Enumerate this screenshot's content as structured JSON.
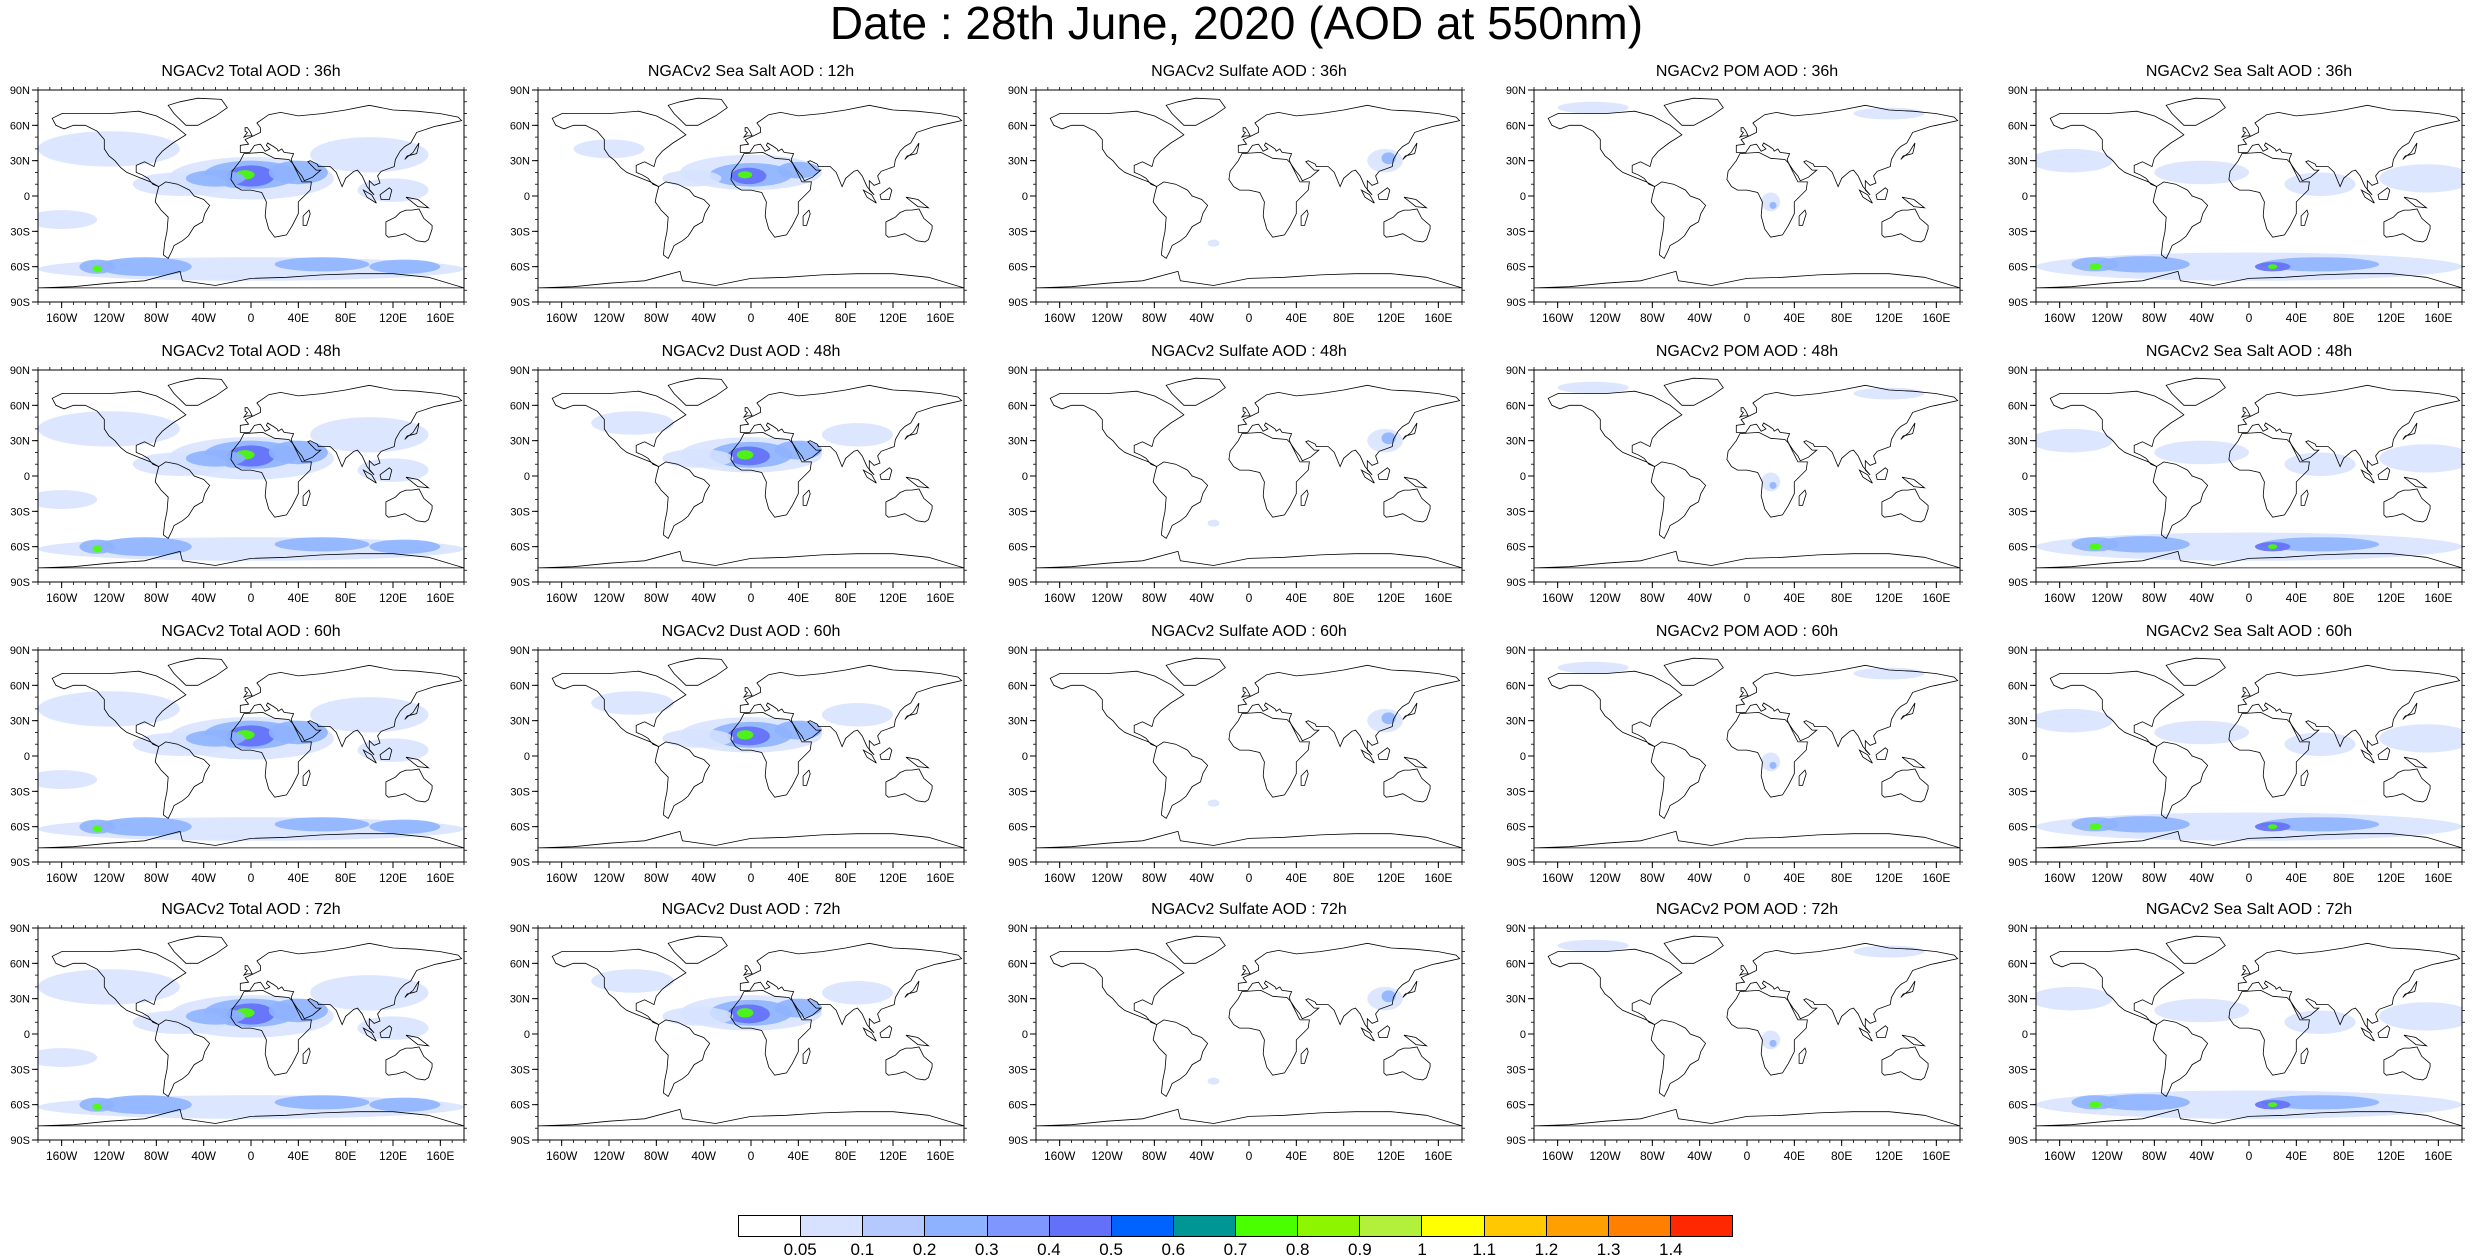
{
  "title": "Date : 28th June, 2020 (AOD at 550nm)",
  "panels": [
    [
      "NGACv2 Total AOD : 36h",
      "NGACv2 Sea Salt  AOD : 12h",
      "NGACv2 Sulfate AOD : 36h",
      "NGACv2 POM AOD : 36h",
      "NGACv2 Sea Salt AOD : 36h"
    ],
    [
      "NGACv2 Total AOD : 48h",
      "NGACv2 Dust AOD : 48h",
      "NGACv2 Sulfate AOD : 48h",
      "NGACv2 POM AOD : 48h",
      "NGACv2 Sea Salt AOD : 48h"
    ],
    [
      "NGACv2 Total AOD : 60h",
      "NGACv2 Dust AOD : 60h",
      "NGACv2 Sulfate AOD : 60h",
      "NGACv2 POM AOD : 60h",
      "NGACv2 Sea Salt AOD : 60h"
    ],
    [
      "NGACv2 Total AOD : 72h",
      "NGACv2 Dust AOD : 72h",
      "NGACv2 Sulfate AOD : 72h",
      "NGACv2 POM AOD : 72h",
      "NGACv2 Sea Salt  AOD : 72h"
    ]
  ],
  "lat_labels": [
    "90N",
    "60N",
    "30N",
    "0",
    "30S",
    "60S",
    "90S"
  ],
  "lon_labels": [
    "160W",
    "120W",
    "80W",
    "40W",
    "0",
    "40E",
    "80E",
    "120E",
    "160E"
  ],
  "colorbar": {
    "labels": [
      "0.05",
      "0.1",
      "0.2",
      "0.3",
      "0.4",
      "0.5",
      "0.6",
      "0.7",
      "0.8",
      "0.9",
      "1",
      "1.1",
      "1.2",
      "1.3",
      "1.4"
    ],
    "colors": [
      "#ffffff",
      "#d6e2ff",
      "#b5c9ff",
      "#8eb2ff",
      "#7f96ff",
      "#6370f8",
      "#0063ff",
      "#009696",
      "#4aff00",
      "#8ef500",
      "#b2f03c",
      "#ffff00",
      "#ffc800",
      "#ffa000",
      "#ff8000",
      "#ff2800"
    ]
  },
  "aerosol_color_key": {
    "low": "#d6e2ff",
    "mid": "#8eb2ff",
    "high": "#6370f8",
    "peak": "#4aff00"
  }
}
